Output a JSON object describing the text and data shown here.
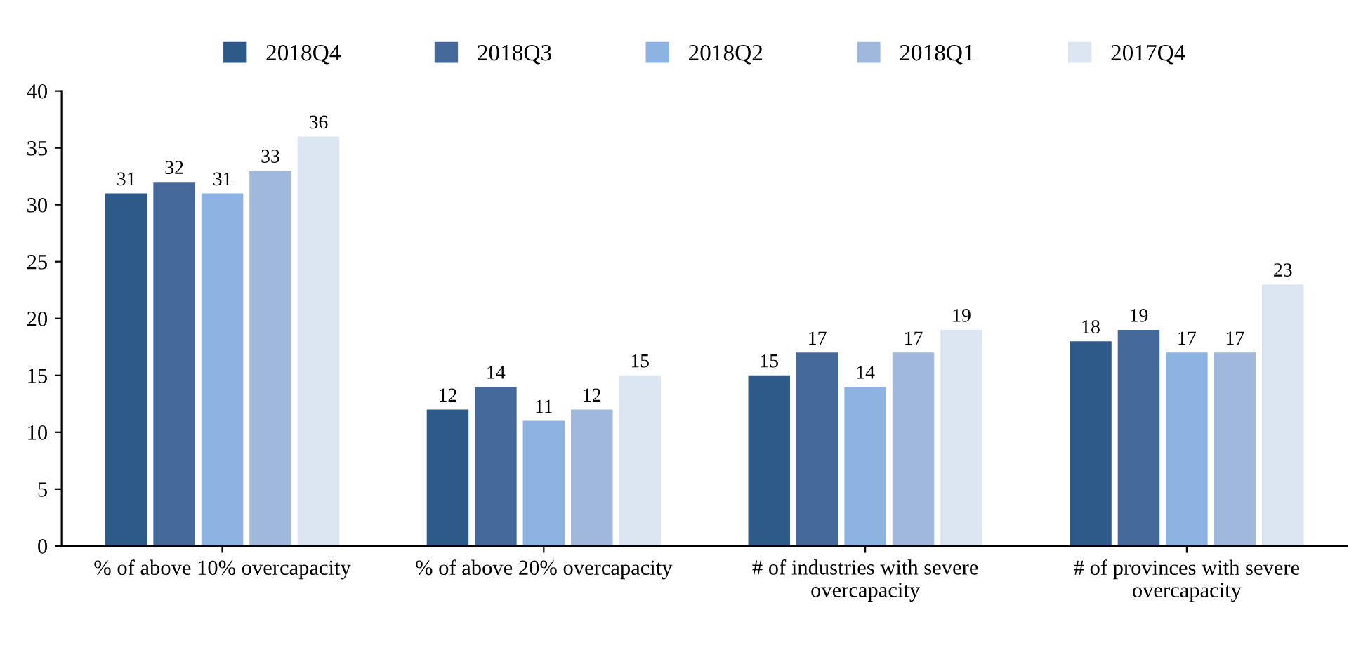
{
  "chart_data": {
    "type": "bar",
    "categories": [
      "% of above 10% overcapacity",
      "% of above 20% overcapacity",
      "# of industries with severe overcapacity",
      "# of provinces with severe overcapacity"
    ],
    "series": [
      {
        "name": "2018Q4",
        "color": "#2e5a8a",
        "values": [
          31,
          12,
          15,
          18
        ]
      },
      {
        "name": "2018Q3",
        "color": "#44699a",
        "values": [
          32,
          14,
          17,
          19
        ]
      },
      {
        "name": "2018Q2",
        "color": "#8db3e2",
        "values": [
          31,
          11,
          14,
          17
        ]
      },
      {
        "name": "2018Q1",
        "color": "#9fb8dc",
        "values": [
          33,
          12,
          17,
          17
        ]
      },
      {
        "name": "2017Q4",
        "color": "#dce6f2",
        "values": [
          36,
          15,
          19,
          23
        ]
      }
    ],
    "ylim": [
      0,
      40
    ],
    "yticks": [
      0,
      5,
      10,
      15,
      20,
      25,
      30,
      35,
      40
    ],
    "data_labels": true,
    "legend": "top",
    "grid": false
  }
}
